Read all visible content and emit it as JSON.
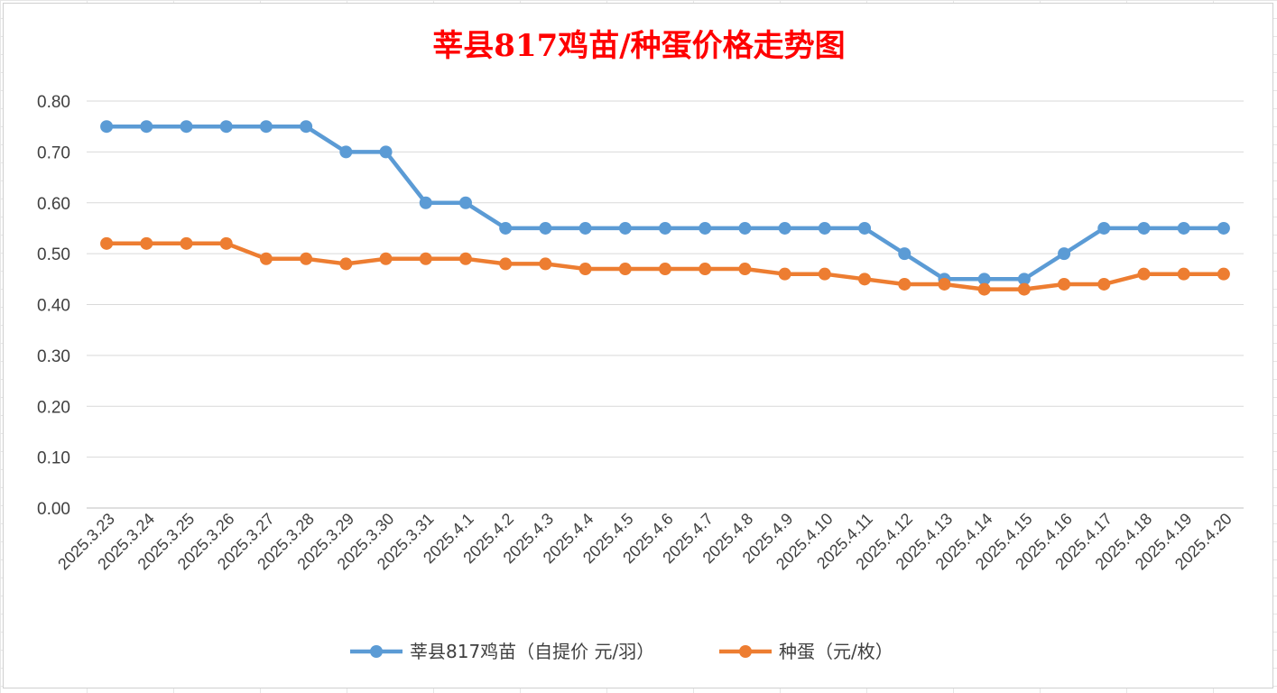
{
  "chart_data": {
    "type": "line",
    "title": "莘县817鸡苗/种蛋价格走势图",
    "xlabel": "",
    "ylabel": "",
    "ylim": [
      0,
      0.8
    ],
    "y_ticks": [
      "0.00",
      "0.10",
      "0.20",
      "0.30",
      "0.40",
      "0.50",
      "0.60",
      "0.70",
      "0.80"
    ],
    "grid": "horizontal",
    "legend_position": "bottom",
    "categories": [
      "2025.3.23",
      "2025.3.24",
      "2025.3.25",
      "2025.3.26",
      "2025.3.27",
      "2025.3.28",
      "2025.3.29",
      "2025.3.30",
      "2025.3.31",
      "2025.4.1",
      "2025.4.2",
      "2025.4.3",
      "2025.4.4",
      "2025.4.5",
      "2025.4.6",
      "2025.4.7",
      "2025.4.8",
      "2025.4.9",
      "2025.4.10",
      "2025.4.11",
      "2025.4.12",
      "2025.4.13",
      "2025.4.14",
      "2025.4.15",
      "2025.4.16",
      "2025.4.17",
      "2025.4.18",
      "2025.4.19",
      "2025.4.20"
    ],
    "series": [
      {
        "name": "莘县817鸡苗（自提价 元/羽）",
        "color": "#5b9bd5",
        "values": [
          0.75,
          0.75,
          0.75,
          0.75,
          0.75,
          0.75,
          0.7,
          0.7,
          0.6,
          0.6,
          0.55,
          0.55,
          0.55,
          0.55,
          0.55,
          0.55,
          0.55,
          0.55,
          0.55,
          0.55,
          0.5,
          0.45,
          0.45,
          0.45,
          0.5,
          0.55,
          0.55,
          0.55,
          0.55
        ]
      },
      {
        "name": "种蛋（元/枚）",
        "color": "#ed7d31",
        "values": [
          0.52,
          0.52,
          0.52,
          0.52,
          0.49,
          0.49,
          0.48,
          0.49,
          0.49,
          0.49,
          0.48,
          0.48,
          0.47,
          0.47,
          0.47,
          0.47,
          0.47,
          0.46,
          0.46,
          0.45,
          0.44,
          0.44,
          0.43,
          0.43,
          0.44,
          0.44,
          0.46,
          0.46,
          0.46
        ]
      }
    ]
  }
}
